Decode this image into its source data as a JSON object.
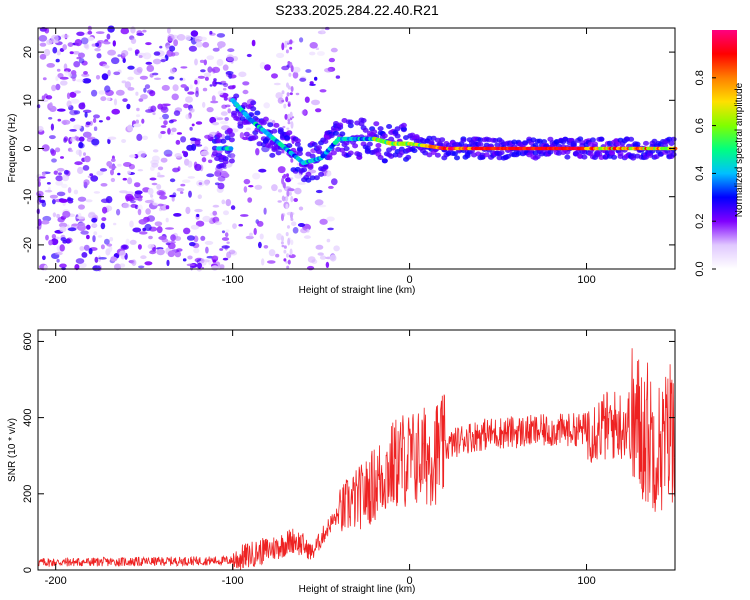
{
  "chart_data": [
    {
      "type": "heatmap",
      "title": "S233.2025.284.22.40.R21",
      "xlabel": "Height of straight line (km)",
      "ylabel": "Frequency (Hz)",
      "xlim": [
        -210,
        150
      ],
      "ylim": [
        -25,
        25
      ],
      "xticks": [
        -200,
        -100,
        0,
        100
      ],
      "yticks": [
        -20,
        -10,
        0,
        10,
        20
      ],
      "colorbar": {
        "label": "Normalized spectral amplitude",
        "range": [
          0,
          1
        ],
        "ticks": [
          "0.0",
          "0.2",
          "0.4",
          "0.6",
          "0.8"
        ],
        "colors": [
          "#ffffff",
          "#e0c8ff",
          "#8000ff",
          "#0000ff",
          "#00c0ff",
          "#00ff80",
          "#80ff00",
          "#ffe000",
          "#ff8000",
          "#ff0000",
          "#ff0080"
        ]
      },
      "ridge": {
        "description_points": [
          [
            -100,
            10
          ],
          [
            -90,
            6
          ],
          [
            -80,
            3
          ],
          [
            -70,
            0
          ],
          [
            -60,
            -3
          ],
          [
            -50,
            -2
          ],
          [
            -40,
            2
          ],
          [
            -20,
            2
          ],
          [
            -10,
            1
          ],
          [
            0,
            1
          ],
          [
            20,
            0
          ],
          [
            50,
            0
          ],
          [
            100,
            0
          ],
          [
            150,
            0
          ]
        ]
      }
    },
    {
      "type": "line",
      "xlabel": "Height of straight line (km)",
      "ylabel": "SNR (10 * v/v)",
      "xlim": [
        -210,
        150
      ],
      "ylim": [
        0,
        630
      ],
      "xticks": [
        -200,
        -100,
        0,
        100
      ],
      "yticks": [
        0,
        200,
        400,
        600
      ],
      "series": [
        {
          "name": "SNR",
          "color": "#ee2222",
          "x": [
            -210,
            -150,
            -100,
            -90,
            -75,
            -65,
            -55,
            -45,
            -35,
            -25,
            -15,
            -5,
            0,
            10,
            20,
            30,
            40,
            50,
            75,
            100,
            115,
            125,
            135,
            140,
            145,
            150
          ],
          "y": [
            20,
            22,
            25,
            40,
            60,
            80,
            45,
            120,
            170,
            200,
            250,
            290,
            290,
            300,
            320,
            345,
            355,
            360,
            365,
            370,
            380,
            385,
            360,
            320,
            340,
            400
          ]
        }
      ]
    }
  ]
}
